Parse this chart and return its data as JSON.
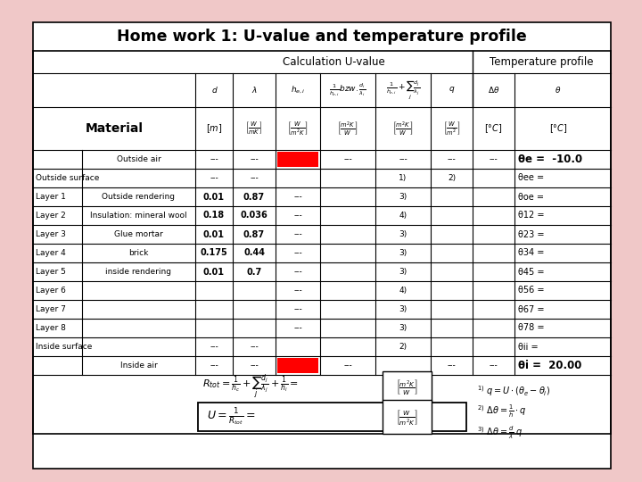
{
  "title": "Home work 1: U-value and temperature profile",
  "background_color": "#f0c8c8",
  "table_bg": "#ffffff",
  "header1_text": "Calculation U-value",
  "header2_text": "Temperature profile",
  "red_color": "#ff0000",
  "rows": [
    {
      "label1": "",
      "label2": "Outside air",
      "d": "---",
      "lam": "---",
      "h": "RED",
      "d_lam": "---",
      "sum_col": "---",
      "q": "---",
      "dtheta": "---",
      "theta": "θe =  -10.0",
      "theta_bold": true
    },
    {
      "label1": "Outside surface",
      "label2": "",
      "d": "---",
      "lam": "---",
      "h": "",
      "d_lam": "",
      "sum_col": "1)",
      "q": "2)",
      "dtheta": "",
      "theta": "θee =",
      "theta_bold": false
    },
    {
      "label1": "Layer 1",
      "label2": "Outside rendering",
      "d": "0.01",
      "lam": "0.87",
      "h": "---",
      "d_lam": "",
      "sum_col": "3)",
      "q": "",
      "dtheta": "",
      "theta": "θoe =",
      "theta_bold": false
    },
    {
      "label1": "Layer 2",
      "label2": "Insulation: mineral wool",
      "d": "0.18",
      "lam": "0.036",
      "h": "---",
      "d_lam": "",
      "sum_col": "4)",
      "q": "",
      "dtheta": "",
      "theta": "θ12 =",
      "theta_bold": false
    },
    {
      "label1": "Layer 3",
      "label2": "Glue mortar",
      "d": "0.01",
      "lam": "0.87",
      "h": "---",
      "d_lam": "",
      "sum_col": "3)",
      "q": "",
      "dtheta": "",
      "theta": "θ23 =",
      "theta_bold": false
    },
    {
      "label1": "Layer 4",
      "label2": "brick",
      "d": "0.175",
      "lam": "0.44",
      "h": "---",
      "d_lam": "",
      "sum_col": "3)",
      "q": "",
      "dtheta": "",
      "theta": "θ34 =",
      "theta_bold": false
    },
    {
      "label1": "Layer 5",
      "label2": "inside rendering",
      "d": "0.01",
      "lam": "0.7",
      "h": "---",
      "d_lam": "",
      "sum_col": "3)",
      "q": "",
      "dtheta": "",
      "theta": "θ45 =",
      "theta_bold": false
    },
    {
      "label1": "Layer 6",
      "label2": "",
      "d": "",
      "lam": "",
      "h": "---",
      "d_lam": "",
      "sum_col": "4)",
      "q": "",
      "dtheta": "",
      "theta": "θ56 =",
      "theta_bold": false
    },
    {
      "label1": "Layer 7",
      "label2": "",
      "d": "",
      "lam": "",
      "h": "---",
      "d_lam": "",
      "sum_col": "3)",
      "q": "",
      "dtheta": "",
      "theta": "θ67 =",
      "theta_bold": false
    },
    {
      "label1": "Layer 8",
      "label2": "",
      "d": "",
      "lam": "",
      "h": "---",
      "d_lam": "",
      "sum_col": "3)",
      "q": "",
      "dtheta": "",
      "theta": "θ78 =",
      "theta_bold": false
    },
    {
      "label1": "Inside surface",
      "label2": "",
      "d": "---",
      "lam": "---",
      "h": "",
      "d_lam": "",
      "sum_col": "2)",
      "q": "",
      "dtheta": "",
      "theta": "θii =",
      "theta_bold": false
    },
    {
      "label1": "",
      "label2": "Inside air",
      "d": "---",
      "lam": "---",
      "h": "RED",
      "d_lam": "---",
      "sum_col": "",
      "q": "---",
      "dtheta": "---",
      "theta": "θi =  20.00",
      "theta_bold": true
    }
  ]
}
